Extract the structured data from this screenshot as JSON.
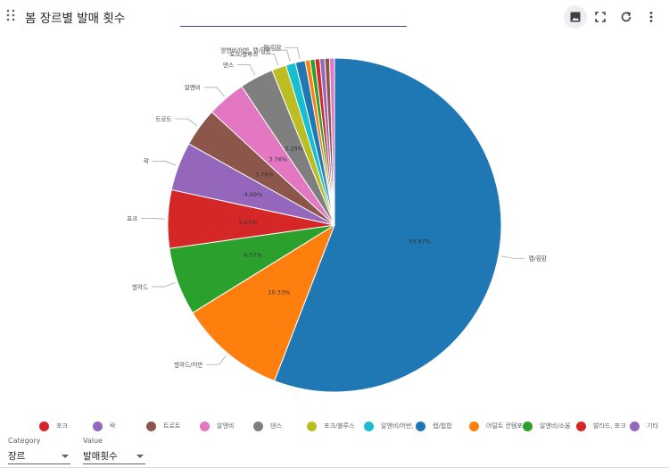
{
  "header": {
    "title": "봄 장르별 발매 횟수",
    "actions": [
      {
        "name": "image-button",
        "icon": "image-icon",
        "active": true
      },
      {
        "name": "fullscreen-button",
        "icon": "fullscreen-icon",
        "active": false
      },
      {
        "name": "refresh-button",
        "icon": "refresh-icon",
        "active": false
      },
      {
        "name": "more-button",
        "icon": "more-vert-icon",
        "active": false
      }
    ]
  },
  "chart_data": {
    "type": "pie",
    "title": "",
    "slices": [
      {
        "label": "랩/힙합",
        "value": 55.87,
        "display": "55.87%",
        "color": "#1f77b4"
      },
      {
        "label": "발라드/어반",
        "value": 10.33,
        "display": "10.33%",
        "color": "#ff7f0e"
      },
      {
        "label": "발라드",
        "value": 6.57,
        "display": "6.57%",
        "color": "#2ca02c"
      },
      {
        "label": "포크",
        "value": 5.63,
        "display": "5.63%",
        "color": "#d62728"
      },
      {
        "label": "락",
        "value": 4.69,
        "display": "4.69%",
        "color": "#9467bd"
      },
      {
        "label": "트로트",
        "value": 3.76,
        "display": "3.76%",
        "color": "#8c564b"
      },
      {
        "label": "알앤비",
        "value": 3.76,
        "display": "3.76%",
        "color": "#e377c2"
      },
      {
        "label": "댄스",
        "value": 3.29,
        "display": "3.29%",
        "color": "#7f7f7f"
      },
      {
        "label": "포크/블루스",
        "value": 1.41,
        "display": "",
        "color": "#bcbd22"
      },
      {
        "label": "알앤비/어반, 랩/힙합",
        "value": 0.94,
        "display": "",
        "color": "#17becf"
      },
      {
        "label": "랩/힙합",
        "value": 0.94,
        "display": "",
        "color": "#1f77b4"
      },
      {
        "label": "",
        "value": 0.47,
        "display": "",
        "color": "#ff7f0e"
      },
      {
        "label": "",
        "value": 0.47,
        "display": "",
        "color": "#2ca02c"
      },
      {
        "label": "",
        "value": 0.47,
        "display": "",
        "color": "#d62728"
      },
      {
        "label": "",
        "value": 0.47,
        "display": "",
        "color": "#9467bd"
      },
      {
        "label": "",
        "value": 0.47,
        "display": "",
        "color": "#8c564b"
      },
      {
        "label": "",
        "value": 0.47,
        "display": "",
        "color": "#e377c2"
      }
    ],
    "legend_placement": "bottom",
    "legend": [
      {
        "label": "발라드",
        "color": ""
      },
      {
        "label": "포크",
        "color": "#d62728"
      },
      {
        "label": "락",
        "color": "#9467bd"
      },
      {
        "label": "트로트",
        "color": "#8c564b"
      },
      {
        "label": "알앤비",
        "color": "#e377c2"
      },
      {
        "label": "댄스",
        "color": "#7f7f7f"
      },
      {
        "label": "포크/블루스",
        "color": "#bcbd22"
      },
      {
        "label": "알앤비/어반, 랩/힙합",
        "color": "#17becf"
      },
      {
        "label": "랩/힙합",
        "color": "#1f77b4"
      },
      {
        "label": "어덜트 컨템포러리",
        "color": "#ff7f0e"
      },
      {
        "label": "알앤비/소울",
        "color": "#2ca02c"
      },
      {
        "label": "발라드, 포크",
        "color": "#d62728"
      },
      {
        "label": "기타",
        "color": "#9467bd"
      }
    ]
  },
  "controls": {
    "category": {
      "label": "Category",
      "value": "장르"
    },
    "value": {
      "label": "Value",
      "value": "발매횟수"
    }
  }
}
